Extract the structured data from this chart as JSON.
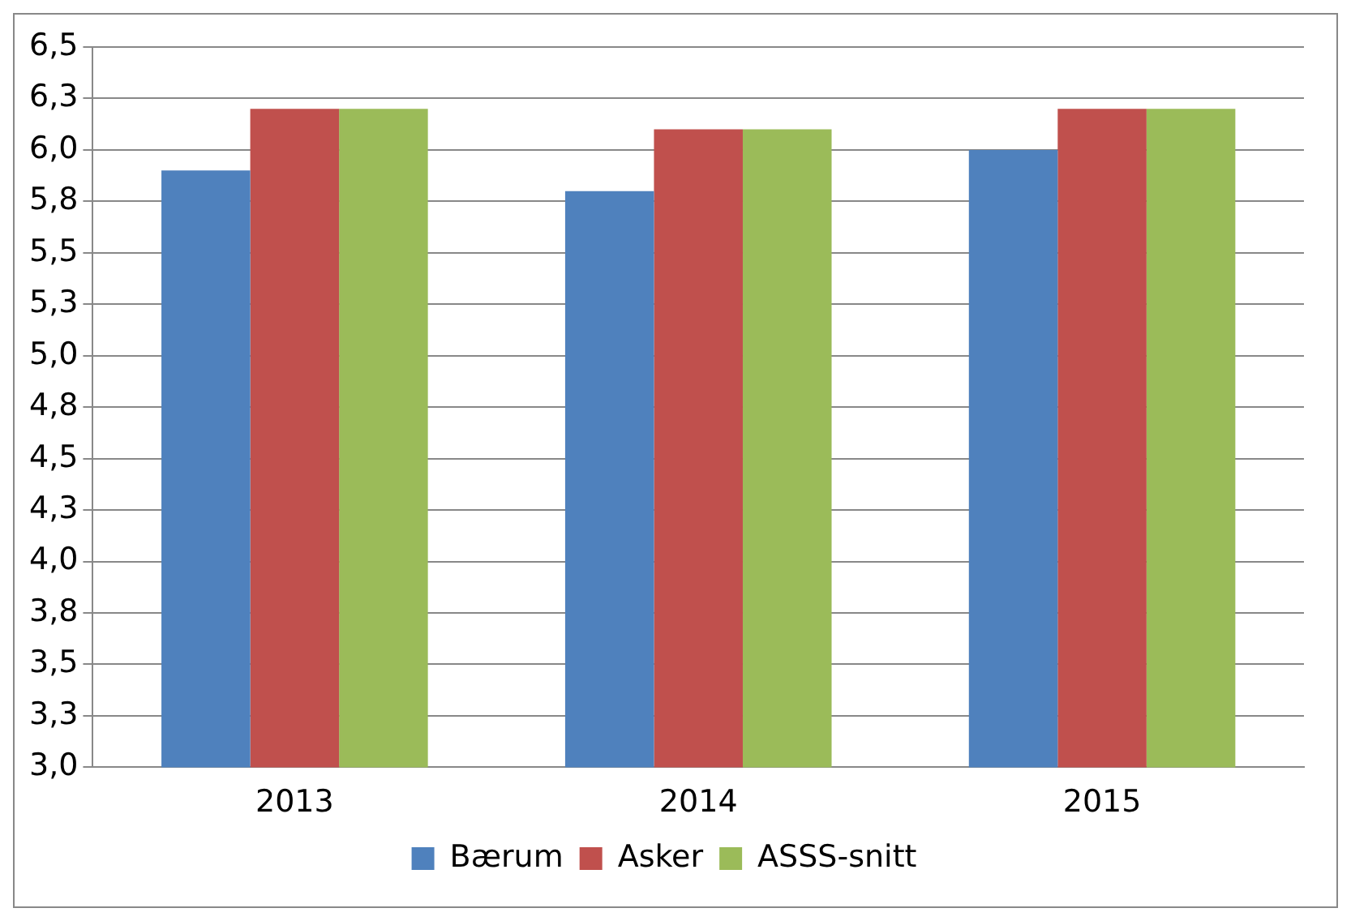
{
  "chart_data": {
    "type": "bar",
    "categories": [
      "2013",
      "2014",
      "2015"
    ],
    "series": [
      {
        "name": "Bærum",
        "color": "#4f81bd",
        "values": [
          5.9,
          5.8,
          6.0
        ]
      },
      {
        "name": "Asker",
        "color": "#c0504d",
        "values": [
          6.2,
          6.1,
          6.2
        ]
      },
      {
        "name": "ASSS-snitt",
        "color": "#9bbb59",
        "values": [
          6.2,
          6.1,
          6.2
        ]
      }
    ],
    "ylim": [
      3.0,
      6.5
    ],
    "yticks": [
      {
        "value": 3.0,
        "label": "3,0"
      },
      {
        "value": 3.25,
        "label": "3,3"
      },
      {
        "value": 3.5,
        "label": "3,5"
      },
      {
        "value": 3.75,
        "label": "3,8"
      },
      {
        "value": 4.0,
        "label": "4,0"
      },
      {
        "value": 4.25,
        "label": "4,3"
      },
      {
        "value": 4.5,
        "label": "4,5"
      },
      {
        "value": 4.75,
        "label": "4,8"
      },
      {
        "value": 5.0,
        "label": "5,0"
      },
      {
        "value": 5.25,
        "label": "5,3"
      },
      {
        "value": 5.5,
        "label": "5,5"
      },
      {
        "value": 5.75,
        "label": "5,8"
      },
      {
        "value": 6.0,
        "label": "6,0"
      },
      {
        "value": 6.25,
        "label": "6,3"
      },
      {
        "value": 6.5,
        "label": "6,5"
      }
    ],
    "grid": "y",
    "legend": "bottom"
  }
}
